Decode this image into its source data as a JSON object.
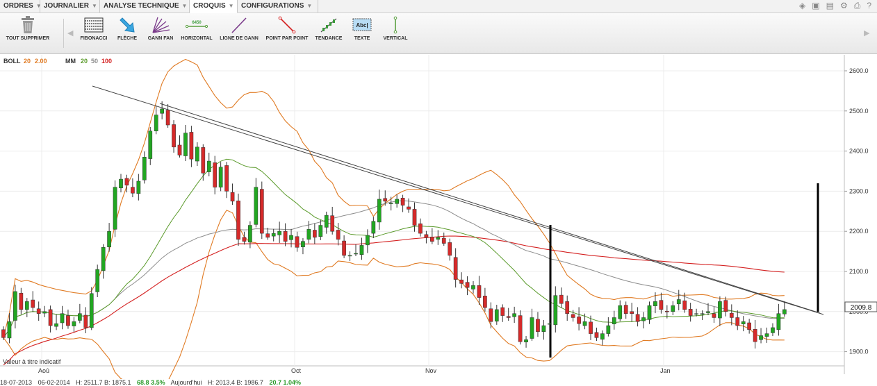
{
  "menu": [
    {
      "label": "ORDRES"
    },
    {
      "label": "JOURNALIER"
    },
    {
      "label": "ANALYSE TECHNIQUE"
    },
    {
      "label": "CROQUIS"
    },
    {
      "label": "CONFIGURATIONS"
    }
  ],
  "toolbar": {
    "delete_all": "TOUT SUPPRIMER",
    "tools": [
      {
        "label": "FIBONACCI",
        "icon": "fibonacci-icon"
      },
      {
        "label": "FLÈCHE",
        "icon": "arrow-icon"
      },
      {
        "label": "GANN FAN",
        "icon": "gann-fan-icon"
      },
      {
        "label": "HORIZONTAL",
        "icon": "horizontal-line-icon",
        "icon_text": "6450"
      },
      {
        "label": "LIGNE DE GANN",
        "icon": "gann-line-icon"
      },
      {
        "label": "POINT PAR POINT",
        "icon": "point-line-icon"
      },
      {
        "label": "TENDANCE",
        "icon": "trend-icon"
      },
      {
        "label": "TEXTE",
        "icon": "text-icon",
        "icon_text": "Abc|"
      },
      {
        "label": "VERTICAL",
        "icon": "vertical-line-icon"
      }
    ]
  },
  "legend": {
    "boll_label": "BOLL",
    "boll_p1": "20",
    "boll_p2": "2.00",
    "mm_label": "MM",
    "mm_p1": "20",
    "mm_p2": "50",
    "mm_p3": "100"
  },
  "note": "Valeur à titre indicatif",
  "last_price_label": "2009.8",
  "footer": {
    "date_from": "18-07-2013",
    "date_to": "06-02-2014",
    "range": "H: 2511.7  B: 1875.1",
    "range_change": "68.8  3.5%",
    "today_label": "Aujourd'hui",
    "today": "H: 2013.4  B: 1986.7",
    "today_change": "20.7  1.04%"
  },
  "colors": {
    "up": "#22a622",
    "down": "#d62a2a",
    "boll": "#e07a22",
    "ma20": "#5a9a2a",
    "ma50": "#8c8c8c",
    "ma100": "#d42020"
  },
  "chart_data": {
    "type": "candlestick",
    "ylim": [
      1880,
      2620
    ],
    "y_ticks": [
      "1900.0",
      "2000.0",
      "2100.0",
      "2200.0",
      "2300.0",
      "2400.0",
      "2500.0",
      "2600.0"
    ],
    "x_ticks": [
      "Aoû",
      "Oct",
      "Nov",
      "Jan"
    ],
    "grid": true,
    "close": [
      1935,
      1975,
      2050,
      2005,
      2025,
      2010,
      1995,
      2000,
      1965,
      1970,
      1995,
      1965,
      1975,
      1995,
      1960,
      2045,
      2105,
      2160,
      2200,
      2310,
      2330,
      2315,
      2295,
      2325,
      2385,
      2450,
      2490,
      2505,
      2465,
      2410,
      2390,
      2445,
      2380,
      2410,
      2345,
      2375,
      2310,
      2360,
      2300,
      2275,
      2180,
      2175,
      2215,
      2310,
      2195,
      2185,
      2195,
      2200,
      2175,
      2190,
      2160,
      2175,
      2205,
      2185,
      2215,
      2240,
      2200,
      2180,
      2140,
      2140,
      2145,
      2165,
      2190,
      2225,
      2280,
      2275,
      2270,
      2280,
      2265,
      2255,
      2215,
      2195,
      2185,
      2175,
      2185,
      2170,
      2140,
      2080,
      2070,
      2060,
      2065,
      2035,
      2010,
      1975,
      2005,
      1990,
      1985,
      1995,
      1925,
      1930,
      1985,
      1950,
      1965,
      1970,
      2040,
      2020,
      1995,
      1985,
      1970,
      1975,
      1945,
      1935,
      1945,
      1965,
      1985,
      2015,
      1995,
      1995,
      1975,
      1985,
      2015,
      2025,
      2005,
      2000,
      2015,
      2030,
      2005,
      1990,
      1995,
      1995,
      2000,
      1985,
      2025,
      2000,
      1985,
      1965,
      1975,
      1955,
      1925,
      1940,
      1945,
      1960,
      1995,
      2005
    ],
    "low_min": 1875.1,
    "high_max": 2511.7,
    "moving_averages": [
      "MM 20",
      "MM 50",
      "MM 100"
    ],
    "bollinger": "BOLL 20 2.00"
  }
}
